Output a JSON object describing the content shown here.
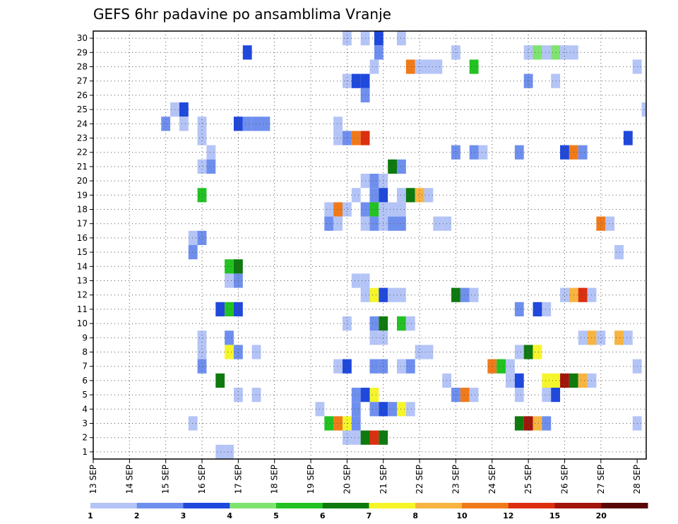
{
  "chart_data": {
    "type": "heatmap",
    "title": "GEFS 6hr padavine po ansamblima Vranje",
    "x_tick_labels": [
      "13 SEP",
      "14 SEP",
      "15 SEP",
      "16 SEP",
      "17 SEP",
      "18 SEP",
      "19 SEP",
      "20 SEP",
      "21 SEP",
      "22 SEP",
      "23 SEP",
      "24 SEP",
      "25 SEP",
      "26 SEP",
      "27 SEP",
      "28 SEP"
    ],
    "y_tick_labels": [
      "1",
      "2",
      "3",
      "4",
      "5",
      "6",
      "7",
      "8",
      "9",
      "10",
      "11",
      "12",
      "13",
      "14",
      "15",
      "16",
      "17",
      "18",
      "19",
      "20",
      "21",
      "22",
      "23",
      "24",
      "25",
      "26",
      "27",
      "28",
      "29",
      "30"
    ],
    "xlim": [
      0,
      61
    ],
    "ylim": [
      0.5,
      30.5
    ],
    "grid": true,
    "colorbar": {
      "labels": [
        "1",
        "2",
        "3",
        "4",
        "5",
        "6",
        "7",
        "8",
        "10",
        "12",
        "15",
        "20"
      ],
      "colors": [
        "#b4c4f6",
        "#6f8fee",
        "#1f48dc",
        "#7fe36f",
        "#22c222",
        "#0e7a0e",
        "#f5f52a",
        "#f7b441",
        "#f07a1a",
        "#dc2f10",
        "#a3140a",
        "#5a0606"
      ]
    },
    "cells": [
      [
        28,
        30,
        1
      ],
      [
        30,
        30,
        1
      ],
      [
        31.5,
        30,
        3
      ],
      [
        34,
        30,
        1
      ],
      [
        17,
        29,
        3
      ],
      [
        31.5,
        29,
        2
      ],
      [
        40,
        29,
        1
      ],
      [
        48,
        29,
        1
      ],
      [
        49,
        29,
        4
      ],
      [
        50,
        29,
        1
      ],
      [
        51,
        29,
        4
      ],
      [
        52,
        29,
        1
      ],
      [
        53,
        29,
        1
      ],
      [
        31,
        28,
        1
      ],
      [
        35,
        28,
        9
      ],
      [
        36,
        28,
        1
      ],
      [
        37,
        28,
        1
      ],
      [
        38,
        28,
        1
      ],
      [
        42,
        28,
        5
      ],
      [
        60,
        28,
        1
      ],
      [
        28,
        27,
        1
      ],
      [
        29,
        27,
        3
      ],
      [
        30,
        27,
        3
      ],
      [
        48,
        27,
        2
      ],
      [
        51,
        27,
        1
      ],
      [
        30,
        26,
        2
      ],
      [
        9,
        25,
        1
      ],
      [
        10,
        25,
        3
      ],
      [
        61,
        25,
        1
      ],
      [
        8,
        24,
        2
      ],
      [
        10,
        24,
        1
      ],
      [
        12,
        24,
        1
      ],
      [
        16,
        24,
        3
      ],
      [
        17,
        24,
        2
      ],
      [
        18,
        24,
        2
      ],
      [
        19,
        24,
        2
      ],
      [
        27,
        24,
        1
      ],
      [
        12,
        23,
        1
      ],
      [
        27,
        23,
        1
      ],
      [
        28,
        23,
        2
      ],
      [
        29,
        23,
        9
      ],
      [
        30,
        23,
        10
      ],
      [
        59,
        23,
        3
      ],
      [
        13,
        22,
        1
      ],
      [
        40,
        22,
        2
      ],
      [
        42,
        22,
        2
      ],
      [
        43,
        22,
        1
      ],
      [
        47,
        22,
        2
      ],
      [
        52,
        22,
        3
      ],
      [
        53,
        22,
        9
      ],
      [
        54,
        22,
        2
      ],
      [
        12,
        21,
        1
      ],
      [
        13,
        21,
        2
      ],
      [
        33,
        21,
        6
      ],
      [
        34,
        21,
        2
      ],
      [
        30,
        20,
        1
      ],
      [
        31,
        20,
        2
      ],
      [
        32,
        20,
        1
      ],
      [
        12,
        19,
        5
      ],
      [
        29,
        19,
        1
      ],
      [
        31,
        19,
        2
      ],
      [
        32,
        19,
        3
      ],
      [
        34,
        19,
        1
      ],
      [
        35,
        19,
        6
      ],
      [
        36,
        19,
        8
      ],
      [
        37,
        19,
        1
      ],
      [
        26,
        18,
        1
      ],
      [
        27,
        18,
        9
      ],
      [
        28,
        18,
        1
      ],
      [
        30,
        18,
        2
      ],
      [
        31,
        18,
        5
      ],
      [
        32,
        18,
        1
      ],
      [
        33,
        18,
        1
      ],
      [
        34,
        18,
        1
      ],
      [
        26,
        17,
        2
      ],
      [
        27,
        17,
        1
      ],
      [
        30,
        17,
        1
      ],
      [
        31,
        17,
        2
      ],
      [
        32,
        17,
        1
      ],
      [
        33,
        17,
        2
      ],
      [
        34,
        17,
        2
      ],
      [
        38,
        17,
        1
      ],
      [
        39,
        17,
        1
      ],
      [
        56,
        17,
        9
      ],
      [
        57,
        17,
        1
      ],
      [
        11,
        16,
        1
      ],
      [
        12,
        16,
        2
      ],
      [
        11,
        15,
        2
      ],
      [
        58,
        15,
        1
      ],
      [
        15,
        14,
        5
      ],
      [
        16,
        14,
        6
      ],
      [
        15,
        13,
        1
      ],
      [
        16,
        13,
        2
      ],
      [
        29,
        13,
        1
      ],
      [
        30,
        13,
        1
      ],
      [
        30,
        12,
        1
      ],
      [
        31,
        12,
        7
      ],
      [
        32,
        12,
        3
      ],
      [
        33,
        12,
        1
      ],
      [
        34,
        12,
        1
      ],
      [
        40,
        12,
        6
      ],
      [
        41,
        12,
        2
      ],
      [
        42,
        12,
        1
      ],
      [
        52,
        12,
        1
      ],
      [
        53,
        12,
        8
      ],
      [
        54,
        12,
        10
      ],
      [
        55,
        12,
        1
      ],
      [
        14,
        11,
        3
      ],
      [
        15,
        11,
        5
      ],
      [
        16,
        11,
        3
      ],
      [
        47,
        11,
        2
      ],
      [
        49,
        11,
        3
      ],
      [
        50,
        11,
        1
      ],
      [
        28,
        10,
        1
      ],
      [
        31,
        10,
        2
      ],
      [
        32,
        10,
        6
      ],
      [
        34,
        10,
        5
      ],
      [
        35,
        10,
        1
      ],
      [
        12,
        9,
        1
      ],
      [
        15,
        9,
        2
      ],
      [
        31,
        9,
        1
      ],
      [
        32,
        9,
        1
      ],
      [
        54,
        9,
        1
      ],
      [
        55,
        9,
        8
      ],
      [
        56,
        9,
        1
      ],
      [
        58,
        9,
        8
      ],
      [
        59,
        9,
        1
      ],
      [
        12,
        8,
        1
      ],
      [
        15,
        8,
        7
      ],
      [
        16,
        8,
        2
      ],
      [
        18,
        8,
        1
      ],
      [
        36,
        8,
        1
      ],
      [
        37,
        8,
        1
      ],
      [
        47,
        8,
        1
      ],
      [
        48,
        8,
        6
      ],
      [
        49,
        8,
        7
      ],
      [
        12,
        7,
        2
      ],
      [
        27,
        7,
        1
      ],
      [
        28,
        7,
        3
      ],
      [
        31,
        7,
        2
      ],
      [
        32,
        7,
        2
      ],
      [
        34,
        7,
        1
      ],
      [
        35,
        7,
        2
      ],
      [
        44,
        7,
        9
      ],
      [
        45,
        7,
        5
      ],
      [
        46,
        7,
        1
      ],
      [
        60,
        7,
        1
      ],
      [
        14,
        6,
        6
      ],
      [
        39,
        6,
        1
      ],
      [
        46,
        6,
        1
      ],
      [
        47,
        6,
        3
      ],
      [
        50,
        6,
        7
      ],
      [
        51,
        6,
        7
      ],
      [
        52,
        6,
        11
      ],
      [
        53,
        6,
        6
      ],
      [
        54,
        6,
        8
      ],
      [
        55,
        6,
        1
      ],
      [
        16,
        5,
        1
      ],
      [
        18,
        5,
        1
      ],
      [
        29,
        5,
        2
      ],
      [
        30,
        5,
        3
      ],
      [
        31,
        5,
        7
      ],
      [
        40,
        5,
        2
      ],
      [
        41,
        5,
        9
      ],
      [
        42,
        5,
        1
      ],
      [
        47,
        5,
        1
      ],
      [
        50,
        5,
        1
      ],
      [
        51,
        5,
        3
      ],
      [
        25,
        4,
        1
      ],
      [
        29,
        4,
        2
      ],
      [
        31,
        4,
        2
      ],
      [
        32,
        4,
        3
      ],
      [
        33,
        4,
        2
      ],
      [
        34,
        4,
        7
      ],
      [
        35,
        4,
        1
      ],
      [
        11,
        3,
        1
      ],
      [
        26,
        3,
        5
      ],
      [
        27,
        3,
        9
      ],
      [
        28,
        3,
        7
      ],
      [
        29,
        3,
        2
      ],
      [
        47,
        3,
        6
      ],
      [
        48,
        3,
        11
      ],
      [
        49,
        3,
        8
      ],
      [
        50,
        3,
        2
      ],
      [
        60,
        3,
        1
      ],
      [
        28,
        2,
        1
      ],
      [
        29,
        2,
        1
      ],
      [
        30,
        2,
        6
      ],
      [
        31,
        2,
        10
      ],
      [
        32,
        2,
        6
      ],
      [
        14,
        1,
        1
      ],
      [
        15,
        1,
        1
      ]
    ]
  }
}
